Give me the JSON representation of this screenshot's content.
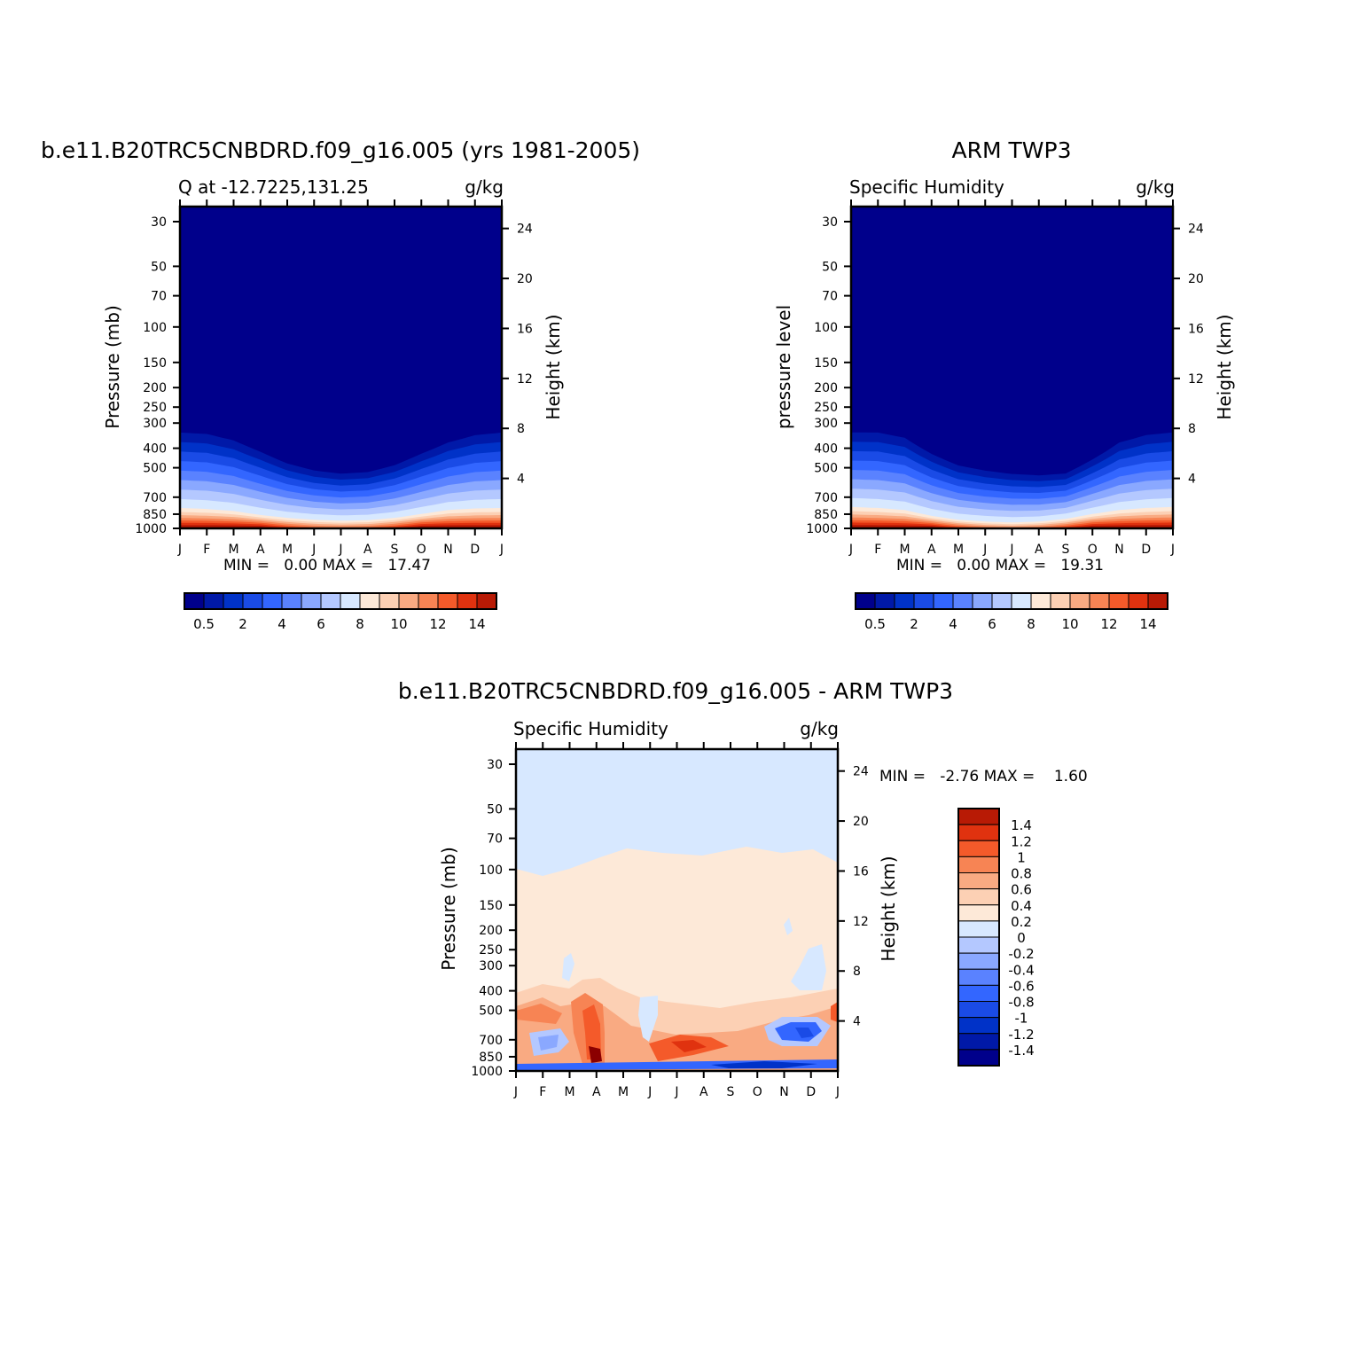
{
  "colors": {
    "q_fill": [
      "#00008b",
      "#0019a8",
      "#0032c8",
      "#1a4be6",
      "#3366ff",
      "#5a82ff",
      "#8aa8ff",
      "#b4c8ff",
      "#d7e8ff",
      "#fde9d8",
      "#fcd0b4",
      "#f9aa82",
      "#f78454",
      "#f45a2a",
      "#e0320f",
      "#b81a05",
      "#8b0000"
    ],
    "diff_fill": [
      "#00008b",
      "#0019a8",
      "#0032c8",
      "#1a4be6",
      "#3366ff",
      "#5a82ff",
      "#8aa8ff",
      "#b4c8ff",
      "#d7e8ff",
      "#fde9d8",
      "#fcd0b4",
      "#f9aa82",
      "#f78454",
      "#f45a2a",
      "#e0320f",
      "#b81a05",
      "#8b0000"
    ]
  },
  "chart_data": [
    {
      "type": "heatmap",
      "title": "b.e11.B20TRC5CNBDRD.f09_g16.005 (yrs 1981-2005)",
      "subtitle_left": "Q at -12.7225,131.25",
      "subtitle_right": "g/kg",
      "ylabel": "Pressure (mb)",
      "ylabel_right": "Height (km)",
      "x_ticks": [
        "J",
        "F",
        "M",
        "A",
        "M",
        "J",
        "J",
        "A",
        "S",
        "O",
        "N",
        "D",
        "J"
      ],
      "y_ticks": [
        "30",
        "50",
        "70",
        "100",
        "150",
        "200",
        "250",
        "300",
        "400",
        "500",
        "700",
        "850",
        "1000"
      ],
      "y_ticks_right": [
        "24",
        "20",
        "16",
        "12",
        "8",
        "4"
      ],
      "y_scale": "log",
      "min_label": "MIN =   0.00 MAX =   17.47",
      "colorbar_labels": [
        "0.5",
        "2",
        "4",
        "6",
        "8",
        "10",
        "12",
        "14"
      ],
      "dry_top_pressure_by_month": [
        300,
        305,
        330,
        380,
        440,
        480,
        500,
        490,
        450,
        390,
        340,
        310,
        300
      ],
      "moist_edge_pressure_by_month": [
        780,
        790,
        810,
        850,
        880,
        900,
        910,
        905,
        880,
        840,
        800,
        785,
        780
      ]
    },
    {
      "type": "heatmap",
      "title": "ARM TWP3",
      "subtitle_left": "Specific Humidity",
      "subtitle_right": "g/kg",
      "ylabel": "pressure level",
      "ylabel_right": "Height (km)",
      "x_ticks": [
        "J",
        "F",
        "M",
        "A",
        "M",
        "J",
        "J",
        "A",
        "S",
        "O",
        "N",
        "D",
        "J"
      ],
      "y_ticks": [
        "30",
        "50",
        "70",
        "100",
        "150",
        "200",
        "250",
        "300",
        "400",
        "500",
        "700",
        "850",
        "1000"
      ],
      "y_ticks_right": [
        "24",
        "20",
        "16",
        "12",
        "8",
        "4"
      ],
      "y_scale": "log",
      "min_label": "MIN =   0.00 MAX =   19.31",
      "colorbar_labels": [
        "0.5",
        "2",
        "4",
        "6",
        "8",
        "10",
        "12",
        "14"
      ],
      "dry_top_pressure_by_month": [
        300,
        300,
        320,
        390,
        450,
        480,
        500,
        510,
        500,
        420,
        340,
        310,
        300
      ],
      "moist_edge_pressure_by_month": [
        770,
        780,
        800,
        860,
        900,
        920,
        930,
        920,
        890,
        840,
        800,
        780,
        770
      ]
    },
    {
      "type": "heatmap",
      "title": "b.e11.B20TRC5CNBDRD.f09_g16.005 - ARM TWP3",
      "subtitle_left": "Specific Humidity",
      "subtitle_right": "g/kg",
      "ylabel": "Pressure (mb)",
      "ylabel_right": "Height (km)",
      "x_ticks": [
        "J",
        "F",
        "M",
        "A",
        "M",
        "J",
        "J",
        "A",
        "S",
        "O",
        "N",
        "D",
        "J"
      ],
      "y_ticks": [
        "30",
        "50",
        "70",
        "100",
        "150",
        "200",
        "250",
        "300",
        "400",
        "500",
        "700",
        "850",
        "1000"
      ],
      "y_ticks_right": [
        "24",
        "20",
        "16",
        "12",
        "8",
        "4"
      ],
      "y_scale": "log",
      "min_label": "MIN =   -2.76 MAX =    1.60",
      "colorbar_labels": [
        "1.4",
        "1.2",
        "1",
        "0.8",
        "0.6",
        "0.4",
        "0.2",
        "0",
        "-0.2",
        "-0.4",
        "-0.6",
        "-0.8",
        "-1",
        "-1.2",
        "-1.4"
      ]
    }
  ]
}
